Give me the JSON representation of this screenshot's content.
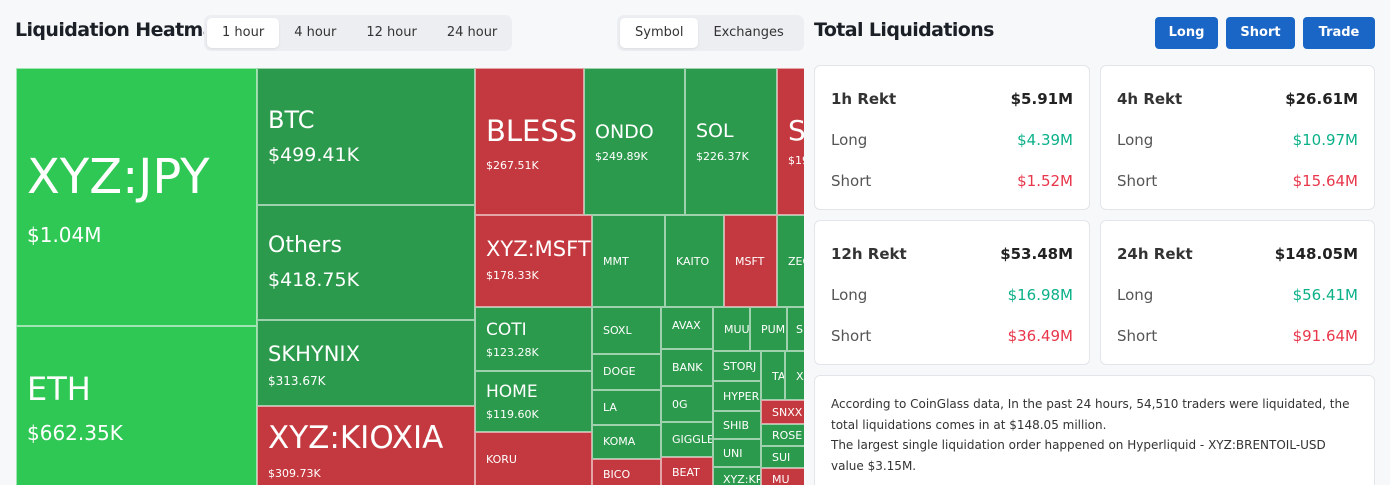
{
  "heatmap": {
    "title": "Liquidation Heatmap",
    "timeframes": [
      "1 hour",
      "4 hour",
      "12 hour",
      "24 hour"
    ],
    "active_timeframe": "1 hour",
    "views": [
      "Symbol",
      "Exchanges"
    ],
    "active_view": "Symbol",
    "tiles": [
      {
        "symbol": "XYZ:JPY",
        "value": "$1.04M"
      },
      {
        "symbol": "ETH",
        "value": "$662.35K"
      },
      {
        "symbol": "BTC",
        "value": "$499.41K"
      },
      {
        "symbol": "Others",
        "value": "$418.75K"
      },
      {
        "symbol": "SKHYNIX",
        "value": "$313.67K"
      },
      {
        "symbol": "XYZ:KIOXIA",
        "value": "$309.73K"
      },
      {
        "symbol": "BLESS",
        "value": "$267.51K"
      },
      {
        "symbol": "ONDO",
        "value": "$249.89K"
      },
      {
        "symbol": "SOL",
        "value": "$226.37K"
      },
      {
        "symbol": "S",
        "value": "$19"
      },
      {
        "symbol": "XYZ:MSFT",
        "value": "$178.33K"
      },
      {
        "symbol": "COTI",
        "value": "$123.28K"
      },
      {
        "symbol": "HOME",
        "value": "$119.60K"
      },
      {
        "symbol": "KORU",
        "value": ""
      },
      {
        "symbol": "MMT",
        "value": ""
      },
      {
        "symbol": "KAITO",
        "value": ""
      },
      {
        "symbol": "MSFT",
        "value": ""
      },
      {
        "symbol": "ZEC",
        "value": ""
      },
      {
        "symbol": "SOXL",
        "value": ""
      },
      {
        "symbol": "DOGE",
        "value": ""
      },
      {
        "symbol": "LA",
        "value": ""
      },
      {
        "symbol": "KOMA",
        "value": ""
      },
      {
        "symbol": "BICO",
        "value": ""
      },
      {
        "symbol": "AVAX",
        "value": ""
      },
      {
        "symbol": "BANK",
        "value": ""
      },
      {
        "symbol": "0G",
        "value": ""
      },
      {
        "symbol": "GIGGLE",
        "value": ""
      },
      {
        "symbol": "BEAT",
        "value": ""
      },
      {
        "symbol": "MUU",
        "value": ""
      },
      {
        "symbol": "PUMP",
        "value": ""
      },
      {
        "symbol": "S",
        "value": ""
      },
      {
        "symbol": "STORJ",
        "value": ""
      },
      {
        "symbol": "HYPER",
        "value": ""
      },
      {
        "symbol": "SHIB",
        "value": ""
      },
      {
        "symbol": "UNI",
        "value": ""
      },
      {
        "symbol": "XYZ:KR",
        "value": ""
      },
      {
        "symbol": "TA",
        "value": ""
      },
      {
        "symbol": "XA",
        "value": ""
      },
      {
        "symbol": "SNXX",
        "value": ""
      },
      {
        "symbol": "ROSE",
        "value": ""
      },
      {
        "symbol": "SUI",
        "value": ""
      },
      {
        "symbol": "MU",
        "value": ""
      }
    ]
  },
  "totals": {
    "title": "Total Liquidations",
    "buttons": {
      "long": "Long",
      "short": "Short",
      "trade": "Trade"
    },
    "cards": [
      {
        "label": "1h Rekt",
        "total": "$5.91M",
        "long_label": "Long",
        "long": "$4.39M",
        "short_label": "Short",
        "short": "$1.52M"
      },
      {
        "label": "4h Rekt",
        "total": "$26.61M",
        "long_label": "Long",
        "long": "$10.97M",
        "short_label": "Short",
        "short": "$15.64M"
      },
      {
        "label": "12h Rekt",
        "total": "$53.48M",
        "long_label": "Long",
        "long": "$16.98M",
        "short_label": "Short",
        "short": "$36.49M"
      },
      {
        "label": "24h Rekt",
        "total": "$148.05M",
        "long_label": "Long",
        "long": "$56.41M",
        "short_label": "Short",
        "short": "$91.64M"
      }
    ],
    "summary_line1": "According to CoinGlass data, In the past 24 hours, 54,510 traders were liquidated, the total liquidations comes in at $148.05 million.",
    "summary_line2": "The largest single liquidation order happened on Hyperliquid - XYZ:BRENTOIL-USD value $3.15M."
  },
  "colors": {
    "long_green": "#0bb089",
    "short_red": "#e8364a",
    "button_blue": "#1a66c6",
    "tile_bright_green": "#2fc854",
    "tile_green": "#2c9a4c",
    "tile_red": "#c4393f"
  }
}
